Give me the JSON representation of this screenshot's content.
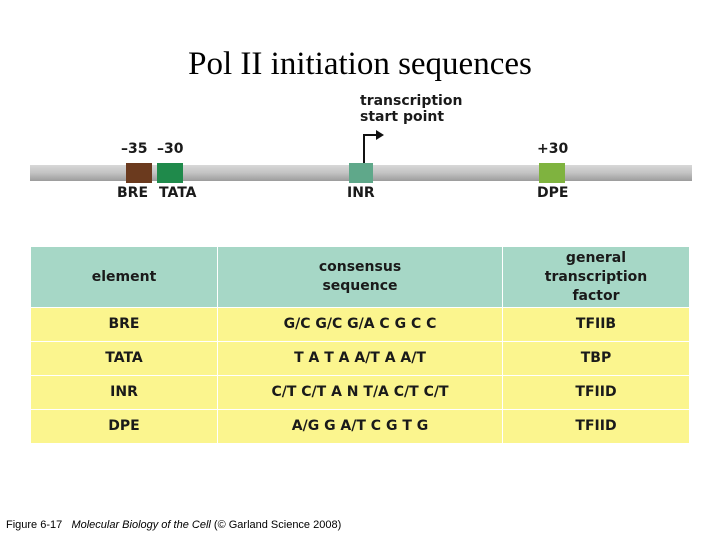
{
  "title": "Pol II initiation sequences",
  "diagram": {
    "transcription_start_label": "transcription\nstart point",
    "position_labels": {
      "minus35": "–35",
      "minus30": "–30",
      "plus30": "+30"
    },
    "elements": [
      {
        "name": "BRE",
        "color": "#6b3a1e"
      },
      {
        "name": "TATA",
        "color": "#1f8a4b"
      },
      {
        "name": "INR",
        "color": "#5fa88a"
      },
      {
        "name": "DPE",
        "color": "#7fb33f"
      }
    ],
    "dna_color": "#c2c2c2"
  },
  "table": {
    "headers": [
      "element",
      "consensus\nsequence",
      "general\ntranscription\nfactor"
    ],
    "rows": [
      [
        "BRE",
        "G/C G/C G/A C G C C",
        "TFIIB"
      ],
      [
        "TATA",
        "T A T A A/T A A/T",
        "TBP"
      ],
      [
        "INR",
        "C/T C/T A N T/A C/T C/T",
        "TFIID"
      ],
      [
        "DPE",
        "A/G G A/T C G T G",
        "TFIID"
      ]
    ],
    "header_color": "#a6d7c6",
    "row_color": "#fbf58e"
  },
  "caption": {
    "figure": "Figure 6-17",
    "book": "Molecular Biology of the Cell",
    "credit": "(© Garland Science 2008)"
  }
}
